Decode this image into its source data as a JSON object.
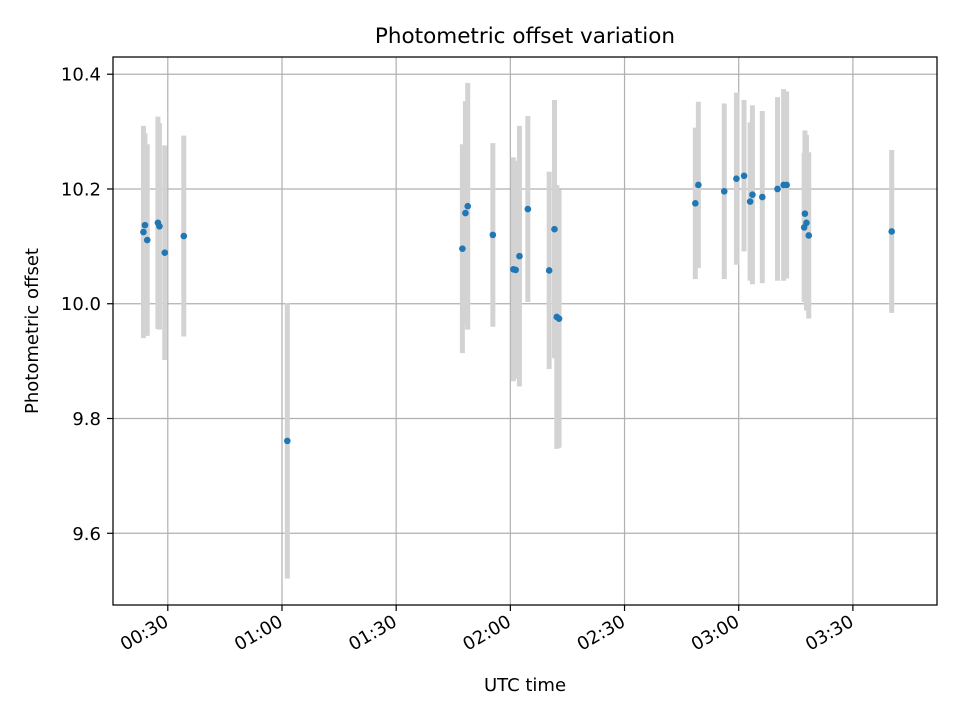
{
  "chart_data": {
    "type": "scatter",
    "title": "Photometric offset variation",
    "xlabel": "UTC time",
    "ylabel": "Photometric offset",
    "x_axis_type": "time",
    "xlim": [
      "00:15:36",
      "03:52:06"
    ],
    "ylim": [
      9.475,
      10.43
    ],
    "x_ticks": [
      "00:30",
      "01:00",
      "01:30",
      "02:00",
      "02:30",
      "03:00",
      "03:30"
    ],
    "y_ticks": [
      9.6,
      9.8,
      10.0,
      10.2,
      10.4
    ],
    "y_tick_labels": [
      "9.6",
      "9.8",
      "10.0",
      "10.2",
      "10.4"
    ],
    "grid": true,
    "marker_color": "#1f77b4",
    "errorbar_color": "#d3d3d3",
    "points": [
      {
        "x": "00:23:36",
        "y": 10.125,
        "err": 0.185
      },
      {
        "x": "00:24:00",
        "y": 10.137,
        "err": 0.16
      },
      {
        "x": "00:24:36",
        "y": 10.111,
        "err": 0.167
      },
      {
        "x": "00:27:24",
        "y": 10.141,
        "err": 0.185
      },
      {
        "x": "00:27:48",
        "y": 10.135,
        "err": 0.18
      },
      {
        "x": "00:29:12",
        "y": 10.089,
        "err": 0.187
      },
      {
        "x": "00:34:12",
        "y": 10.118,
        "err": 0.175
      },
      {
        "x": "01:01:24",
        "y": 9.761,
        "err": 0.24
      },
      {
        "x": "01:47:24",
        "y": 10.096,
        "err": 0.182
      },
      {
        "x": "01:48:12",
        "y": 10.158,
        "err": 0.195
      },
      {
        "x": "01:48:48",
        "y": 10.17,
        "err": 0.215
      },
      {
        "x": "01:55:24",
        "y": 10.12,
        "err": 0.16
      },
      {
        "x": "02:00:48",
        "y": 10.06,
        "err": 0.195
      },
      {
        "x": "02:01:24",
        "y": 10.059,
        "err": 0.19
      },
      {
        "x": "02:02:24",
        "y": 10.083,
        "err": 0.227
      },
      {
        "x": "02:04:36",
        "y": 10.165,
        "err": 0.162
      },
      {
        "x": "02:10:12",
        "y": 10.058,
        "err": 0.172
      },
      {
        "x": "02:11:36",
        "y": 10.13,
        "err": 0.225
      },
      {
        "x": "02:12:12",
        "y": 9.977,
        "err": 0.23
      },
      {
        "x": "02:12:48",
        "y": 9.974,
        "err": 0.225
      },
      {
        "x": "02:48:36",
        "y": 10.175,
        "err": 0.132
      },
      {
        "x": "02:49:24",
        "y": 10.207,
        "err": 0.145
      },
      {
        "x": "02:56:12",
        "y": 10.196,
        "err": 0.153
      },
      {
        "x": "02:59:24",
        "y": 10.218,
        "err": 0.15
      },
      {
        "x": "03:01:24",
        "y": 10.223,
        "err": 0.132
      },
      {
        "x": "03:03:00",
        "y": 10.178,
        "err": 0.138
      },
      {
        "x": "03:03:36",
        "y": 10.19,
        "err": 0.156
      },
      {
        "x": "03:06:12",
        "y": 10.186,
        "err": 0.15
      },
      {
        "x": "03:10:12",
        "y": 10.2,
        "err": 0.16
      },
      {
        "x": "03:11:48",
        "y": 10.207,
        "err": 0.167
      },
      {
        "x": "03:12:36",
        "y": 10.207,
        "err": 0.163
      },
      {
        "x": "03:17:12",
        "y": 10.133,
        "err": 0.13
      },
      {
        "x": "03:17:24",
        "y": 10.157,
        "err": 0.145
      },
      {
        "x": "03:17:48",
        "y": 10.141,
        "err": 0.153
      },
      {
        "x": "03:18:24",
        "y": 10.119,
        "err": 0.145
      },
      {
        "x": "03:40:12",
        "y": 10.126,
        "err": 0.142
      }
    ]
  }
}
